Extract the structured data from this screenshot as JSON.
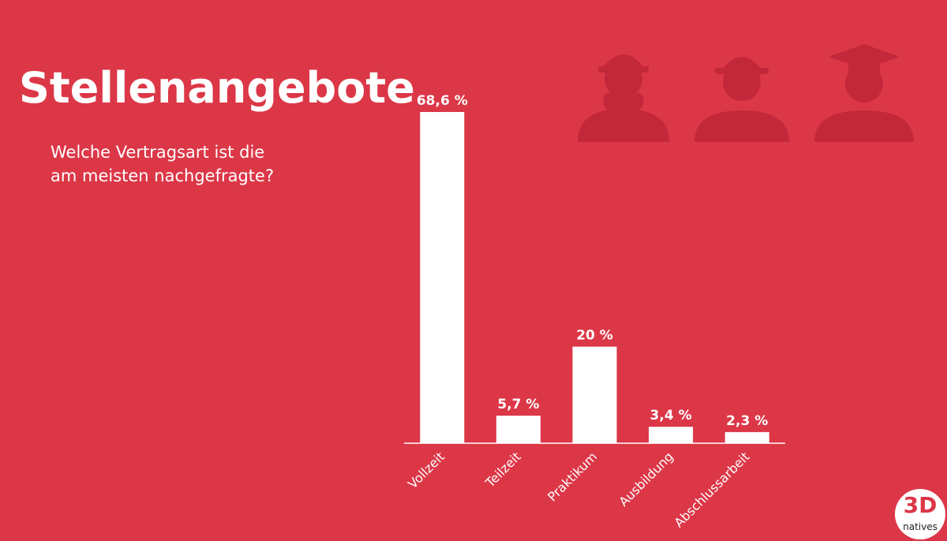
{
  "chart_data": {
    "type": "bar",
    "title": "Stellenangebote",
    "subtitle": "Welche Vertragsart ist die am meisten nachgefragte?",
    "categories": [
      "Vollzeit",
      "Teilzeit",
      "Praktikum",
      "Ausbildung",
      "Abschlussarbeit"
    ],
    "values": [
      68.6,
      5.7,
      20,
      3.4,
      2.3
    ],
    "value_labels": [
      "68,6 %",
      "5,7 %",
      "20 %",
      "3,4 %",
      "2,3 %"
    ],
    "color": "#ffffff"
  },
  "logo": {
    "main": "3D",
    "sub": "natives"
  }
}
